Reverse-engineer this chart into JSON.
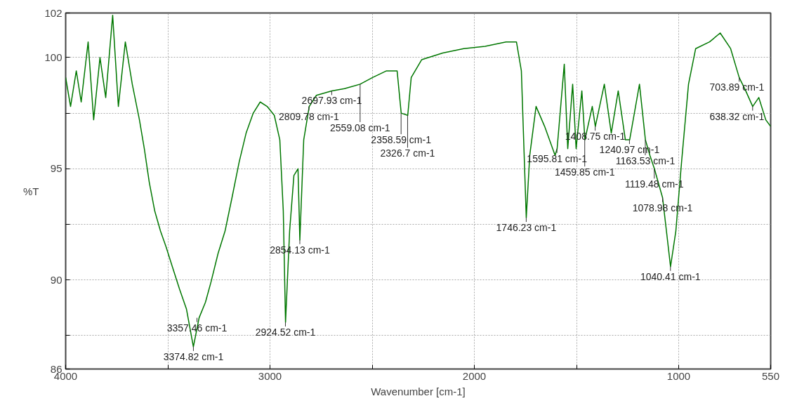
{
  "chart_data": {
    "type": "line",
    "xlabel": "Wavenumber [cm-1]",
    "ylabel": "%T",
    "xlim": [
      4000,
      550
    ],
    "ylim": [
      86,
      102
    ],
    "xticks": [
      4000,
      {
        "value": 3500,
        "label": null
      },
      3000,
      {
        "value": 2500,
        "label": null
      },
      2000,
      {
        "value": 1500,
        "label": null
      },
      1000,
      550
    ],
    "yticks": [
      86,
      {
        "value": 87.5,
        "label": null
      },
      90,
      {
        "value": 92.5,
        "label": null
      },
      95,
      {
        "value": 97.5,
        "label": null
      },
      100,
      102
    ],
    "grid": true,
    "marker": "none",
    "line_style": "solid",
    "series": [
      {
        "color": "#007700",
        "x": [
          4000,
          3976,
          3948,
          3924,
          3890,
          3863,
          3832,
          3804,
          3770,
          3742,
          3708,
          3674,
          3639,
          3615,
          3591,
          3564,
          3536,
          3509,
          3478,
          3443,
          3409,
          3375,
          3347,
          3316,
          3289,
          3254,
          3220,
          3186,
          3151,
          3117,
          3082,
          3048,
          3014,
          2979,
          2952,
          2935,
          2924,
          2904,
          2883,
          2863,
          2854,
          2835,
          2808,
          2773,
          2698,
          2636,
          2559,
          2498,
          2430,
          2378,
          2358,
          2326,
          2309,
          2258,
          2155,
          2052,
          1948,
          1845,
          1794,
          1770,
          1746,
          1729,
          1698,
          1656,
          1605,
          1595,
          1560,
          1543,
          1519,
          1502,
          1474,
          1459,
          1423,
          1408,
          1364,
          1330,
          1296,
          1261,
          1240,
          1192,
          1163,
          1141,
          1119,
          1079,
          1055,
          1040,
          1014,
          986,
          952,
          917,
          849,
          797,
          746,
          704,
          672,
          638,
          608,
          574,
          550
        ],
        "values": [
          99.1,
          97.8,
          99.4,
          98.0,
          100.7,
          97.2,
          100.0,
          98.2,
          101.9,
          97.8,
          100.7,
          98.8,
          97.2,
          95.9,
          94.4,
          93.1,
          92.2,
          91.5,
          90.6,
          89.6,
          88.7,
          87.0,
          88.3,
          89.0,
          89.9,
          91.2,
          92.2,
          93.7,
          95.3,
          96.6,
          97.5,
          98.0,
          97.8,
          97.4,
          96.3,
          93.1,
          88.1,
          92.2,
          94.7,
          95.0,
          91.8,
          96.3,
          97.8,
          98.3,
          98.5,
          98.6,
          98.8,
          99.1,
          99.4,
          99.4,
          97.5,
          97.4,
          99.1,
          99.9,
          100.2,
          100.4,
          100.5,
          100.7,
          100.7,
          99.4,
          92.8,
          95.6,
          97.8,
          96.9,
          95.6,
          95.9,
          99.7,
          95.9,
          98.8,
          95.9,
          98.5,
          96.3,
          97.8,
          96.9,
          98.8,
          96.6,
          98.5,
          96.3,
          96.3,
          98.8,
          96.3,
          95.6,
          95.0,
          93.7,
          91.8,
          90.6,
          92.2,
          95.3,
          98.8,
          100.4,
          100.7,
          101.1,
          100.4,
          99.1,
          98.5,
          97.8,
          98.2,
          97.2,
          96.9
        ]
      }
    ],
    "annotations": [
      {
        "text": "3374.82 cm-1",
        "x": 3374.82,
        "y": 87.0
      },
      {
        "text": "3357.46 cm-1",
        "x": 3357.46,
        "y": 88.3
      },
      {
        "text": "2924.52 cm-1",
        "x": 2924.52,
        "y": 88.1
      },
      {
        "text": "2854.13 cm-1",
        "x": 2854.13,
        "y": 91.8
      },
      {
        "text": "2809.78 cm-1",
        "x": 2809.78,
        "y": 97.8
      },
      {
        "text": "2697.93 cm-1",
        "x": 2697.93,
        "y": 98.5
      },
      {
        "text": "2559.08 cm-1",
        "x": 2559.08,
        "y": 98.8
      },
      {
        "text": "2358.59 cm-1",
        "x": 2358.59,
        "y": 97.5
      },
      {
        "text": "2326.7 cm-1",
        "x": 2326.7,
        "y": 97.4
      },
      {
        "text": "1746.23 cm-1",
        "x": 1746.23,
        "y": 92.8
      },
      {
        "text": "1595.81 cm-1",
        "x": 1595.81,
        "y": 95.9
      },
      {
        "text": "1459.85 cm-1",
        "x": 1459.85,
        "y": 96.3
      },
      {
        "text": "1408.75 cm-1",
        "x": 1408.75,
        "y": 96.9
      },
      {
        "text": "1240.97 cm-1",
        "x": 1240.97,
        "y": 96.3
      },
      {
        "text": "1163.53 cm-1",
        "x": 1163.53,
        "y": 96.3
      },
      {
        "text": "1119.48 cm-1",
        "x": 1119.48,
        "y": 95.0
      },
      {
        "text": "1078.98 cm-1",
        "x": 1078.98,
        "y": 93.7
      },
      {
        "text": "1040.41 cm-1",
        "x": 1040.41,
        "y": 90.6
      },
      {
        "text": "703.89 cm-1",
        "x": 703.89,
        "y": 99.1
      },
      {
        "text": "638.32 cm-1",
        "x": 638.32,
        "y": 97.8
      }
    ]
  }
}
